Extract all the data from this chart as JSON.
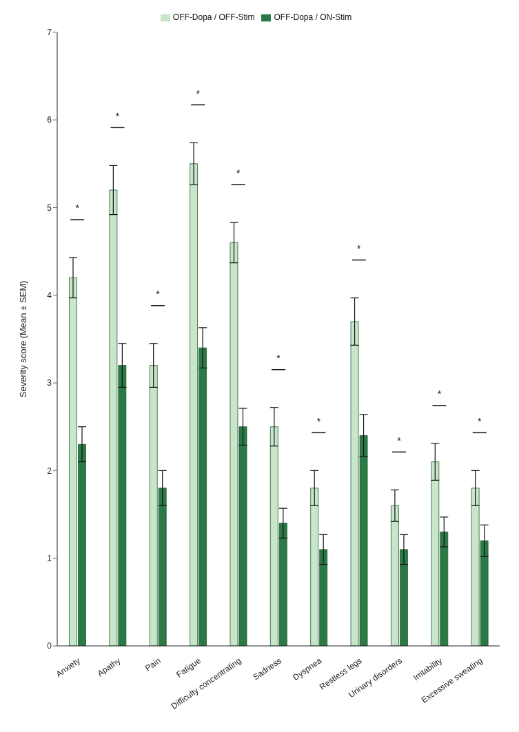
{
  "chart_data": {
    "type": "bar",
    "ylabel": "Severity score (Mean ± SEM)",
    "categories": [
      "Anxiety",
      "Apathy",
      "Pain",
      "Fatigue",
      "Difficulty concentrating",
      "Sadness",
      "Dyspnea",
      "Restless legs",
      "Urinary disorders",
      "Irritability",
      "Excessive sweating"
    ],
    "series": [
      {
        "name": "OFF-Dopa / OFF-Stim",
        "color": "#c8e6c9",
        "values": [
          4.2,
          5.2,
          3.2,
          5.5,
          4.6,
          2.5,
          1.8,
          3.7,
          1.6,
          2.1,
          1.8
        ],
        "errors": [
          0.23,
          0.28,
          0.25,
          0.24,
          0.23,
          0.22,
          0.2,
          0.27,
          0.18,
          0.21,
          0.2
        ]
      },
      {
        "name": "OFF-Dopa / ON-Stim",
        "color": "#2b7a45",
        "values": [
          2.3,
          3.2,
          1.8,
          3.4,
          2.5,
          1.4,
          1.1,
          2.4,
          1.1,
          1.3,
          1.2
        ],
        "errors": [
          0.2,
          0.25,
          0.2,
          0.23,
          0.21,
          0.17,
          0.17,
          0.24,
          0.17,
          0.17,
          0.18
        ]
      }
    ],
    "ylim": [
      0,
      7
    ],
    "yticks": [
      0,
      1,
      2,
      3,
      4,
      5,
      6,
      7
    ],
    "grid": false,
    "legend": "top",
    "annotations": [
      "*",
      "*",
      "*",
      "*",
      "*",
      "*",
      "*",
      "*",
      "*",
      "*",
      "*"
    ]
  }
}
